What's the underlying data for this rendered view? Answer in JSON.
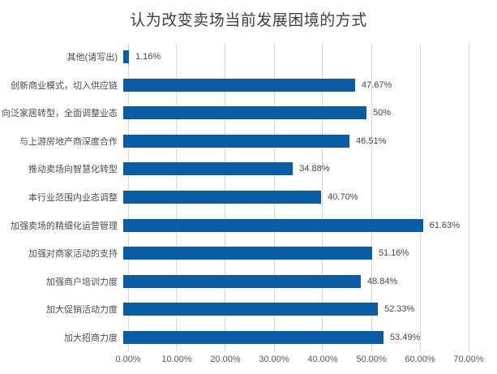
{
  "title": "认为改变卖场当前发展困境的方式",
  "colors": {
    "bar": "#0b5ca4",
    "gridline": "#d9d9d9",
    "title_text": "#3f3f3f",
    "label_text": "#4d4d4d",
    "axis_text": "#595959"
  },
  "chart_data": {
    "type": "bar",
    "orientation": "horizontal",
    "title": "认为改变卖场当前发展困境的方式",
    "categories": [
      "其他(请写出)",
      "创新商业模式，切入供应链",
      "向泛家居转型，全面调整业态",
      "与上游房地产商深度合作",
      "推动卖场向智慧化转型",
      "本行业范围内业态调整",
      "加强卖场的精细化运营管理",
      "加强对商家活动的支持",
      "加强商户培训力度",
      "加大促销活动力度",
      "加大招商力度"
    ],
    "values": [
      1.16,
      47.67,
      50,
      46.51,
      34.88,
      40.7,
      61.63,
      51.16,
      48.84,
      52.33,
      53.49
    ],
    "value_labels": [
      "1.16%",
      "47.67%",
      "50%",
      "46.51%",
      "34.88%",
      "40.70%",
      "61.63%",
      "51.16%",
      "48.84%",
      "52.33%",
      "53.49%"
    ],
    "xlabel": "",
    "ylabel": "",
    "xlim": [
      0,
      70
    ],
    "x_ticks": [
      "0.00%",
      "10.00%",
      "20.00%",
      "30.00%",
      "40.00%",
      "50.00%",
      "60.00%",
      "70.00%"
    ],
    "grid": "vertical",
    "legend": "none"
  }
}
